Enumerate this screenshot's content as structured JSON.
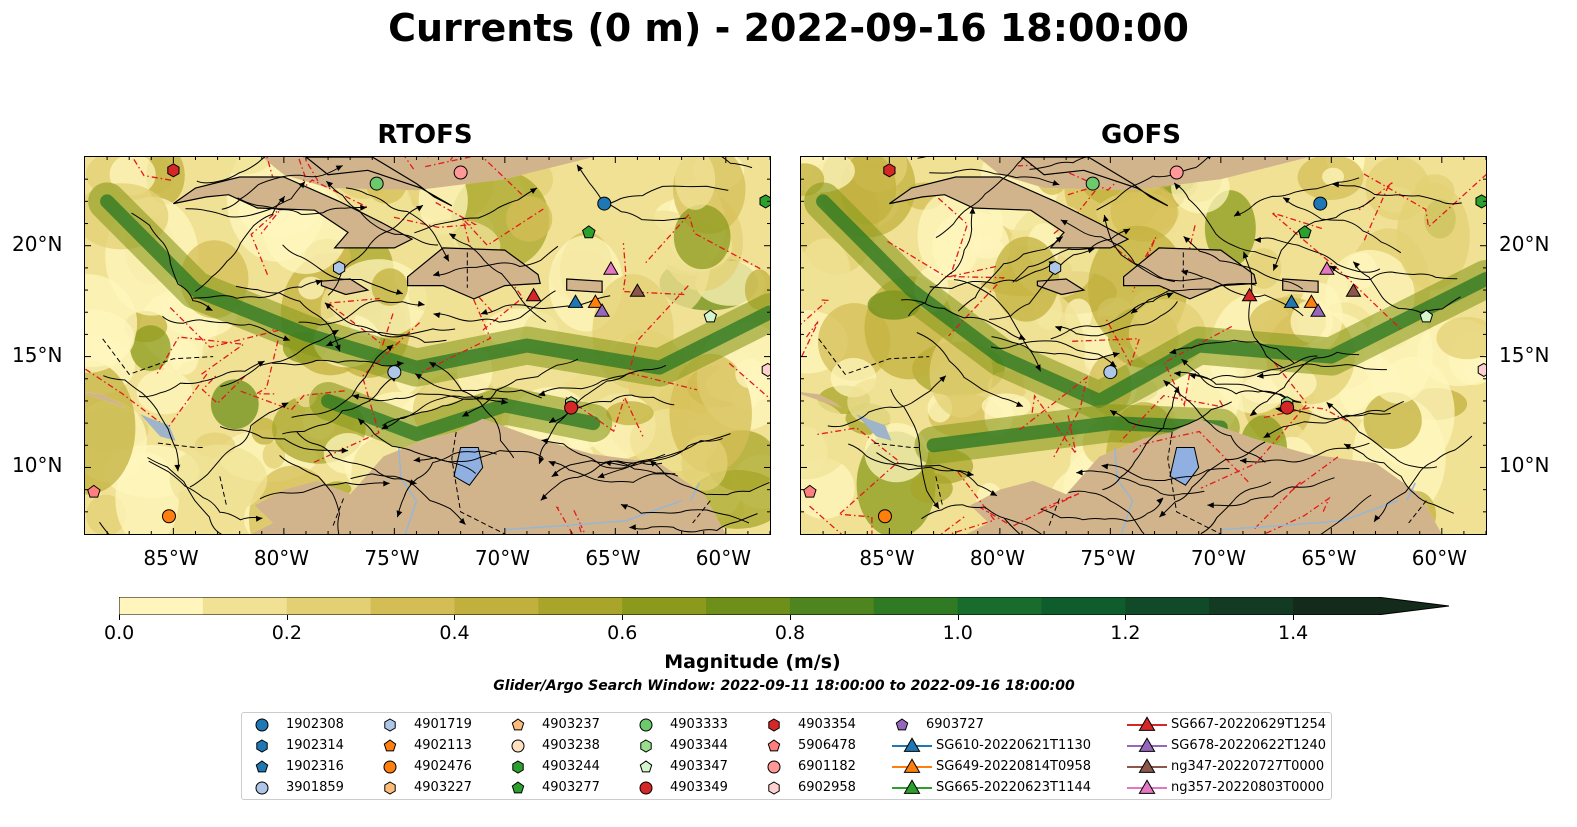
{
  "title": "Currents (0 m) - 2022-09-16 18:00:00",
  "panels": [
    {
      "title": "RTOFS"
    },
    {
      "title": "GOFS"
    }
  ],
  "lon_ticks": [
    "85°W",
    "80°W",
    "75°W",
    "70°W",
    "65°W",
    "60°W"
  ],
  "lat_ticks": [
    "20°N",
    "15°N",
    "10°N"
  ],
  "colorbar": {
    "label": "Magnitude (m/s)",
    "tick_labels": [
      "0.0",
      "0.2",
      "0.4",
      "0.6",
      "0.8",
      "1.0",
      "1.2",
      "1.4"
    ],
    "min": 0.0,
    "max": 1.5,
    "extend": "max",
    "colors": [
      "#fff5bd",
      "#f0e195",
      "#e3d074",
      "#d4bd55",
      "#c1b03d",
      "#a8a52a",
      "#8b9a1c",
      "#6e8f19",
      "#4e851f",
      "#317a24",
      "#186d2c",
      "#0f5d2d",
      "#114a28",
      "#133a22",
      "#142a1a"
    ]
  },
  "search_window": "Glider/Argo Search Window: 2022-09-11 18:00:00 to 2022-09-16 18:00:00",
  "legend": [
    {
      "label": "1902308",
      "marker": "circle",
      "color": "#1f77b4"
    },
    {
      "label": "1902314",
      "marker": "hexagon",
      "color": "#1f77b4"
    },
    {
      "label": "1902316",
      "marker": "pentagon",
      "color": "#1f77b4"
    },
    {
      "label": "3901859",
      "marker": "circle",
      "color": "#aec7e8"
    },
    {
      "label": "4901719",
      "marker": "hexagon",
      "color": "#aec7e8"
    },
    {
      "label": "4902113",
      "marker": "pentagon",
      "color": "#ff7f0e"
    },
    {
      "label": "4902476",
      "marker": "circle",
      "color": "#ff7f0e"
    },
    {
      "label": "4903227",
      "marker": "hexagon",
      "color": "#ffbb78"
    },
    {
      "label": "4903237",
      "marker": "pentagon",
      "color": "#ffbb78"
    },
    {
      "label": "4903238",
      "marker": "circle",
      "color": "#ffe0c0"
    },
    {
      "label": "4903244",
      "marker": "hexagon",
      "color": "#2ca02c"
    },
    {
      "label": "4903277",
      "marker": "pentagon",
      "color": "#2ca02c"
    },
    {
      "label": "4903333",
      "marker": "circle",
      "color": "#6cc96c"
    },
    {
      "label": "4903344",
      "marker": "hexagon",
      "color": "#98df8a"
    },
    {
      "label": "4903347",
      "marker": "pentagon",
      "color": "#d5f5cc"
    },
    {
      "label": "4903349",
      "marker": "circle",
      "color": "#d62728"
    },
    {
      "label": "4903354",
      "marker": "hexagon",
      "color": "#d62728"
    },
    {
      "label": "5906478",
      "marker": "pentagon",
      "color": "#ff7f7f"
    },
    {
      "label": "6901182",
      "marker": "circle",
      "color": "#ff9896"
    },
    {
      "label": "6902958",
      "marker": "hexagon",
      "color": "#ffd0d0"
    },
    {
      "label": "6903727",
      "marker": "pentagon",
      "color": "#9467bd"
    },
    {
      "label": "SG610-20220621T1130",
      "marker": "triangle",
      "color": "#1f77b4"
    },
    {
      "label": "SG649-20220814T0958",
      "marker": "triangle",
      "color": "#ff7f0e"
    },
    {
      "label": "SG665-20220623T1144",
      "marker": "triangle",
      "color": "#2ca02c"
    },
    {
      "label": "SG667-20220629T1254",
      "marker": "triangle",
      "color": "#d62728"
    },
    {
      "label": "SG678-20220622T1240",
      "marker": "triangle",
      "color": "#9467bd"
    },
    {
      "label": "ng347-20220727T0000",
      "marker": "triangle",
      "color": "#8c564b"
    },
    {
      "label": "ng357-20220803T0000",
      "marker": "triangle",
      "color": "#e377c2"
    }
  ],
  "map_extent": {
    "lon": [
      -89,
      -58
    ],
    "lat": [
      7,
      24
    ]
  },
  "observations": [
    {
      "label": "1902308",
      "lon": -65.5,
      "lat": 21.9
    },
    {
      "label": "4903354",
      "lon": -85.0,
      "lat": 23.4
    },
    {
      "label": "6901182",
      "lon": -72.0,
      "lat": 23.3
    },
    {
      "label": "4903333",
      "lon": -75.8,
      "lat": 22.8
    },
    {
      "label": "4903244",
      "lon": -58.2,
      "lat": 22.0
    },
    {
      "label": "4901719",
      "lon": -77.5,
      "lat": 19.0
    },
    {
      "label": "4903277",
      "lon": -66.2,
      "lat": 20.6
    },
    {
      "label": "ng357-20220803T0000",
      "lon": -65.2,
      "lat": 18.9
    },
    {
      "label": "SG667-20220629T1254",
      "lon": -68.7,
      "lat": 17.7
    },
    {
      "label": "SG610-20220621T1130",
      "lon": -66.8,
      "lat": 17.4
    },
    {
      "label": "SG649-20220814T0958",
      "lon": -65.9,
      "lat": 17.4
    },
    {
      "label": "ng347-20220727T0000",
      "lon": -64.0,
      "lat": 17.9
    },
    {
      "label": "SG678-20220622T1240",
      "lon": -65.6,
      "lat": 17.0
    },
    {
      "label": "4903347",
      "lon": -60.7,
      "lat": 16.8
    },
    {
      "label": "3901859",
      "lon": -75.0,
      "lat": 14.3
    },
    {
      "label": "6902958",
      "lon": -58.1,
      "lat": 14.4
    },
    {
      "label": "4903344",
      "lon": -67.0,
      "lat": 12.9
    },
    {
      "label": "4903349",
      "lon": -67.0,
      "lat": 12.7
    },
    {
      "label": "5906478",
      "lon": -88.6,
      "lat": 8.9
    },
    {
      "label": "4902476",
      "lon": -85.2,
      "lat": 7.8
    }
  ]
}
